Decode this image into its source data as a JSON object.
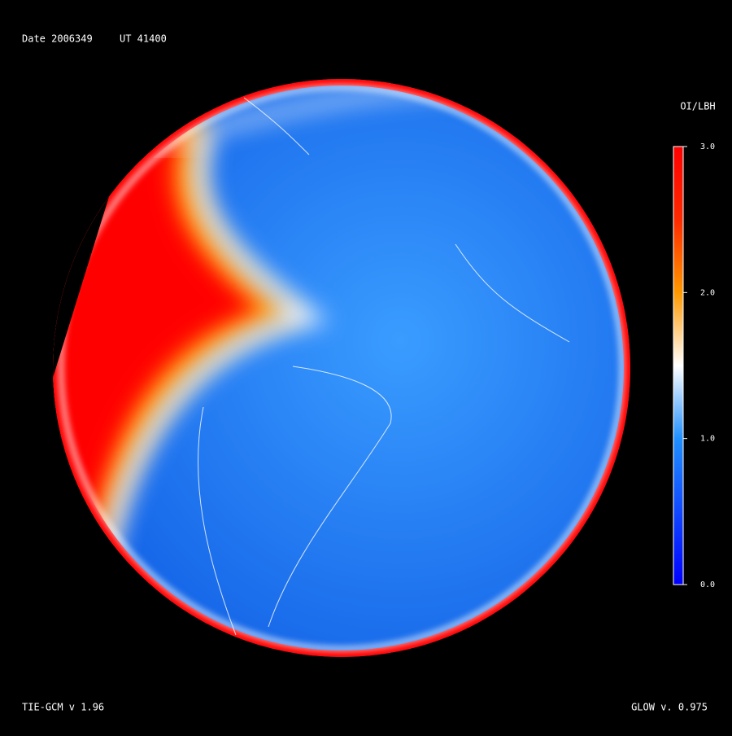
{
  "header": {
    "date": "Date 2006349",
    "ut": "UT 41400"
  },
  "colorbar": {
    "label": "OI/LBH",
    "lim": [
      0,
      3
    ],
    "ticks": [
      {
        "value": 0,
        "label": "0.0"
      },
      {
        "value": 1,
        "label": "1.0"
      },
      {
        "value": 2,
        "label": "2.0"
      },
      {
        "value": 3,
        "label": "3.0"
      }
    ],
    "colormap": [
      {
        "value": 0,
        "color": "#0000ff"
      },
      {
        "value": 1,
        "color": "#2090ff"
      },
      {
        "value": 1.5,
        "color": "#ffffff"
      },
      {
        "value": 2,
        "color": "#ff9900"
      },
      {
        "value": 2.5,
        "color": "#ff2a00"
      },
      {
        "value": 3,
        "color": "#ff0000"
      }
    ]
  },
  "footer": {
    "left": "TIE-GCM v 1.96",
    "right": "GLOW v. 0.975"
  }
}
